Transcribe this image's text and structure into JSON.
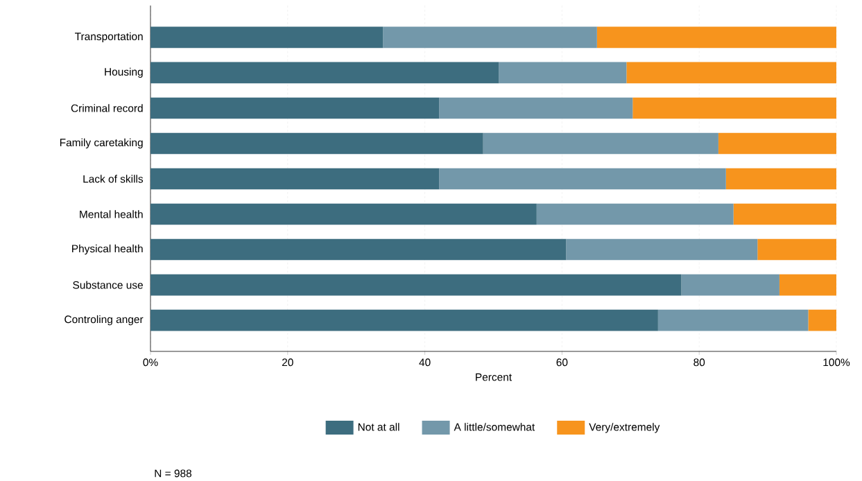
{
  "chart_data": {
    "type": "bar",
    "orientation": "horizontal",
    "stacked": true,
    "xlabel": "Percent",
    "categories": [
      "Transportation",
      "Housing",
      "Criminal record",
      "Family caretaking",
      "Lack of skills",
      "Mental health",
      "Physical health",
      "Substance use",
      "Controling anger"
    ],
    "series": [
      {
        "name": "Not at all",
        "color": "#3d6d7f",
        "values": [
          33.9,
          50.8,
          42.1,
          48.5,
          42.1,
          56.3,
          60.6,
          77.4,
          74.0
        ]
      },
      {
        "name": "A little/somewhat",
        "color": "#7398aa",
        "values": [
          31.2,
          18.6,
          28.2,
          34.3,
          41.8,
          28.7,
          27.9,
          14.3,
          21.9
        ]
      },
      {
        "name": "Very/extremely",
        "color": "#f7941d",
        "values": [
          34.9,
          30.6,
          29.7,
          17.2,
          16.1,
          15.0,
          11.5,
          8.3,
          4.1
        ]
      }
    ],
    "xlim": [
      0,
      100
    ],
    "xticks": [
      {
        "value": 0,
        "label": "0%"
      },
      20,
      40,
      60,
      80,
      {
        "value": 100,
        "label": "100%"
      }
    ],
    "grid": "x",
    "legend": "bottom",
    "annotations": [
      "N = 988"
    ]
  }
}
